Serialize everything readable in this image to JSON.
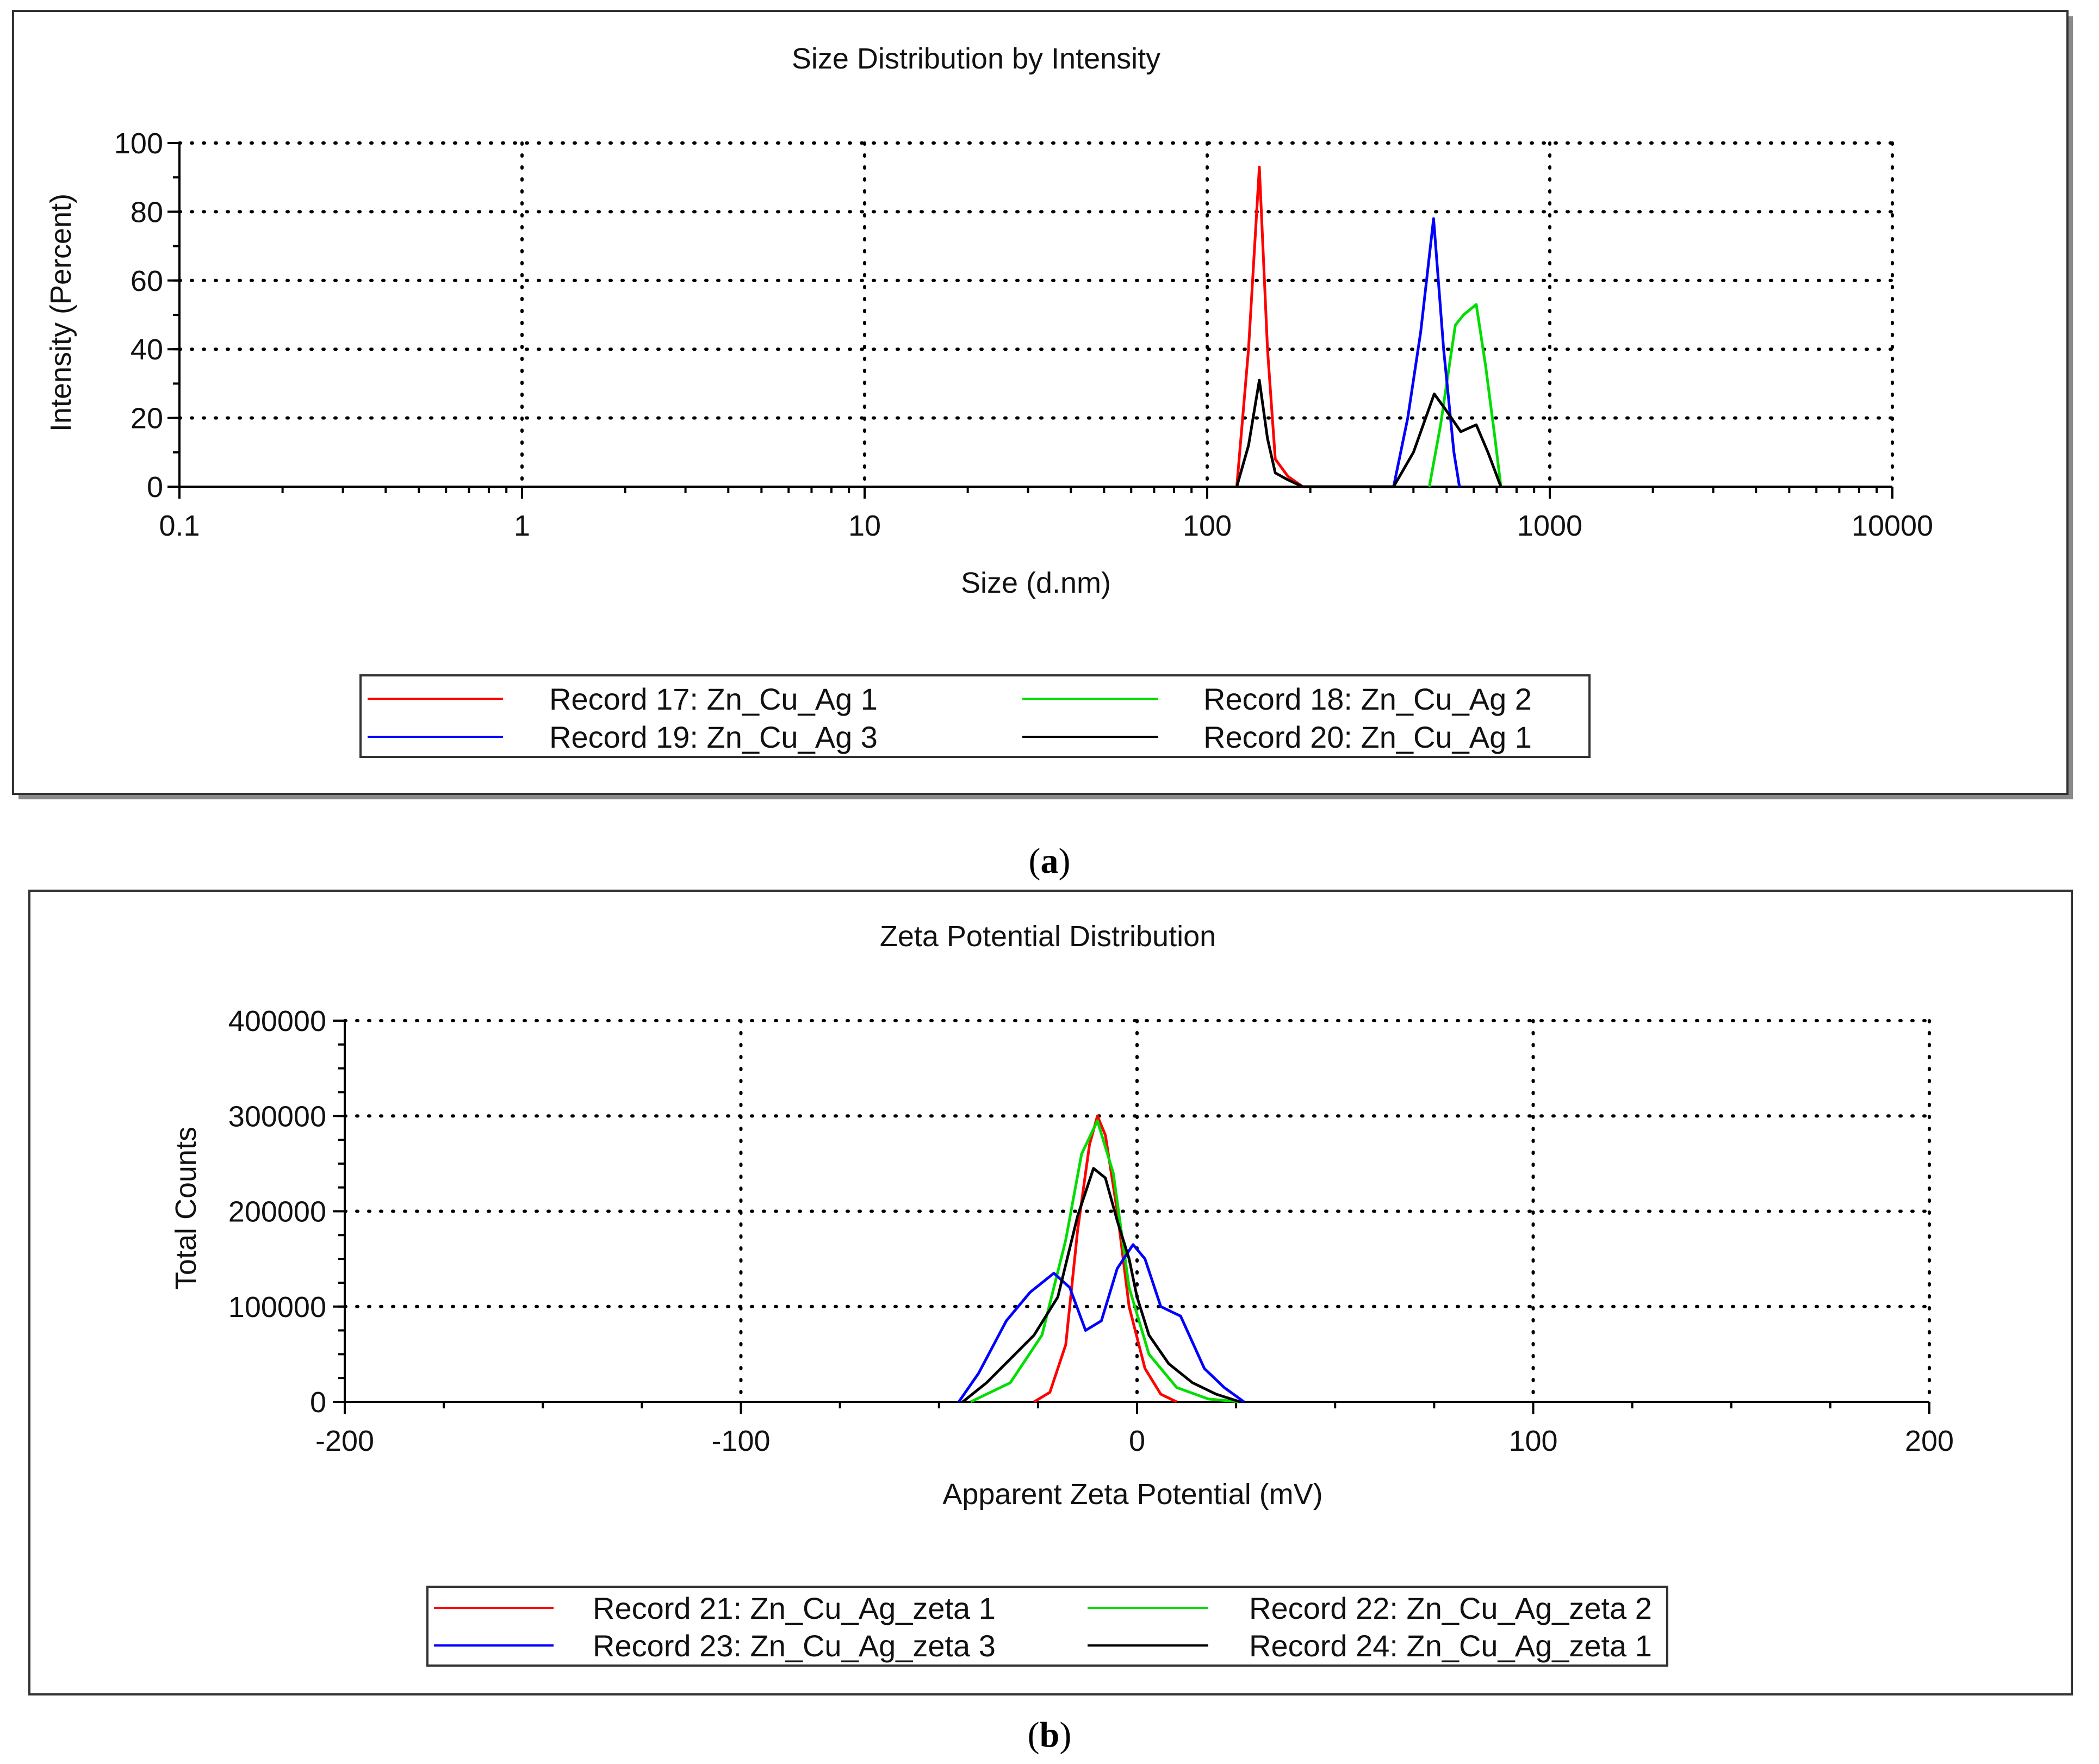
{
  "figure": {
    "caption_a": "a",
    "caption_b": "b",
    "caption_open": "(",
    "caption_close": ")"
  },
  "chart_data": [
    {
      "type": "line",
      "title": "Size Distribution by Intensity",
      "xlabel": "Size (d.nm)",
      "ylabel": "Intensity (Percent)",
      "xscale": "log",
      "xlim": [
        0.1,
        10000
      ],
      "ylim": [
        0,
        100
      ],
      "xticks": [
        0.1,
        1,
        10,
        100,
        1000,
        10000
      ],
      "xtick_labels": [
        "0.1",
        "1",
        "10",
        "100",
        "1000",
        "10000"
      ],
      "yticks": [
        0,
        20,
        40,
        60,
        80,
        100
      ],
      "ytick_labels": [
        "0",
        "20",
        "40",
        "60",
        "80",
        "100"
      ],
      "grid": true,
      "legend_position": "bottom-center",
      "series": [
        {
          "name": "Record 17: Zn_Cu_Ag 1",
          "color": "#ff0000",
          "x": [
            122,
            132,
            142,
            150,
            158,
            172,
            190
          ],
          "y": [
            0,
            40,
            93,
            40,
            8,
            3,
            0
          ]
        },
        {
          "name": "Record 18: Zn_Cu_Ag 2",
          "color": "#00dd00",
          "x": [
            445,
            480,
            530,
            560,
            610,
            650,
            690,
            720
          ],
          "y": [
            0,
            18,
            47,
            50,
            53,
            35,
            15,
            0
          ]
        },
        {
          "name": "Record 19: Zn_Cu_Ag 3",
          "color": "#0000ff",
          "x": [
            350,
            385,
            420,
            458,
            490,
            525,
            545
          ],
          "y": [
            0,
            20,
            45,
            78,
            40,
            10,
            0
          ]
        },
        {
          "name": "Record 20: Zn_Cu_Ag 1",
          "color": "#000000",
          "x": [
            122,
            132,
            142,
            150,
            158,
            172,
            190,
            350,
            400,
            460,
            500,
            550,
            610,
            660,
            720
          ],
          "y": [
            0,
            12,
            31,
            14,
            4,
            2,
            0,
            0,
            10,
            27,
            22,
            16,
            18,
            10,
            0
          ]
        }
      ]
    },
    {
      "type": "line",
      "title": "Zeta Potential Distribution",
      "xlabel": "Apparent Zeta Potential (mV)",
      "ylabel": "Total Counts",
      "xlim": [
        -200,
        200
      ],
      "ylim": [
        0,
        400000
      ],
      "xticks": [
        -200,
        -100,
        0,
        100,
        200
      ],
      "xtick_labels": [
        "-200",
        "-100",
        "0",
        "100",
        "200"
      ],
      "yticks": [
        0,
        100000,
        200000,
        300000,
        400000
      ],
      "ytick_labels": [
        "0",
        "100000",
        "200000",
        "300000",
        "400000"
      ],
      "grid": true,
      "legend_position": "bottom-center",
      "series": [
        {
          "name": "Record 21: Zn_Cu_Ag_zeta 1",
          "color": "#ff0000",
          "x": [
            -26,
            -22,
            -18,
            -15,
            -12,
            -10,
            -8,
            -5,
            -2,
            2,
            6,
            10
          ],
          "y": [
            0,
            10000,
            60000,
            180000,
            270000,
            300000,
            280000,
            200000,
            100000,
            35000,
            8000,
            0
          ]
        },
        {
          "name": "Record 22: Zn_Cu_Ag_zeta 2",
          "color": "#00dd00",
          "x": [
            -42,
            -32,
            -24,
            -18,
            -14,
            -10,
            -6,
            -2,
            3,
            10,
            18,
            26
          ],
          "y": [
            0,
            20000,
            70000,
            170000,
            260000,
            295000,
            240000,
            120000,
            50000,
            15000,
            3000,
            0
          ]
        },
        {
          "name": "Record 23: Zn_Cu_Ag_zeta 3",
          "color": "#0000ff",
          "x": [
            -45,
            -40,
            -33,
            -27,
            -21,
            -17,
            -13,
            -9,
            -5,
            -1,
            2,
            6,
            11,
            17,
            22,
            27
          ],
          "y": [
            0,
            30000,
            85000,
            115000,
            135000,
            120000,
            75000,
            85000,
            140000,
            165000,
            150000,
            100000,
            90000,
            35000,
            15000,
            0
          ]
        },
        {
          "name": "Record 24: Zn_Cu_Ag_zeta 1",
          "color": "#000000",
          "x": [
            -44,
            -38,
            -32,
            -26,
            -20,
            -15,
            -11,
            -8,
            -5,
            -2,
            0,
            3,
            8,
            14,
            20,
            26
          ],
          "y": [
            0,
            20000,
            45000,
            70000,
            110000,
            195000,
            245000,
            235000,
            190000,
            150000,
            110000,
            70000,
            40000,
            20000,
            8000,
            0
          ]
        }
      ]
    }
  ]
}
